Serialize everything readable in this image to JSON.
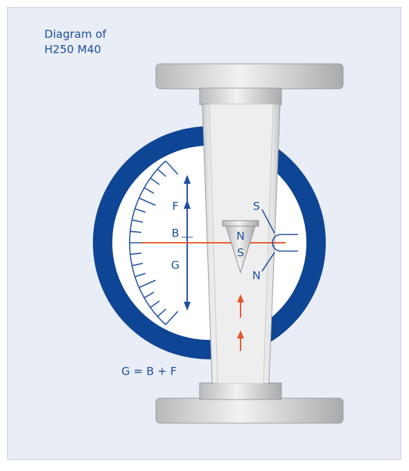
{
  "caption": {
    "line1": "Diagram of",
    "line2": "H250 M40"
  },
  "scale_labels": {
    "f": "F",
    "b": "B",
    "g": "G"
  },
  "float_labels": {
    "top": "N",
    "bottom": "S"
  },
  "magnet_labels": {
    "top": "S",
    "bottom": "N"
  },
  "formula": "G = B + F"
}
